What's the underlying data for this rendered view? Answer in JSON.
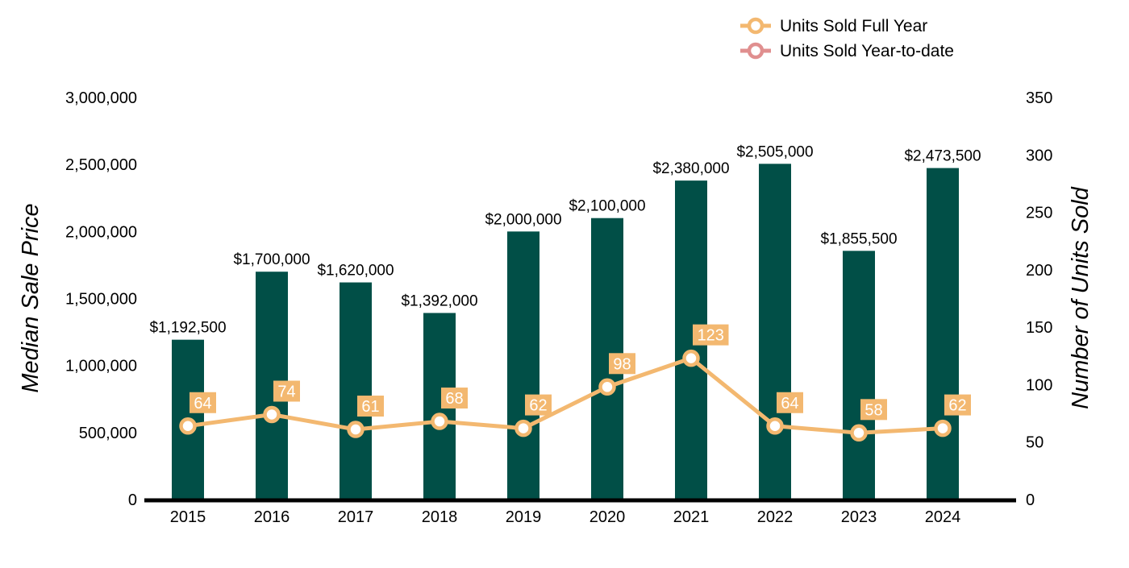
{
  "chart_data": {
    "type": "bar",
    "categories": [
      "2015",
      "2016",
      "2017",
      "2018",
      "2019",
      "2020",
      "2021",
      "2022",
      "2023",
      "2024"
    ],
    "series": [
      {
        "name": "Median Sale Price",
        "type": "bar",
        "axis": "left",
        "values": [
          1192500,
          1700000,
          1620000,
          1392000,
          2000000,
          2100000,
          2380000,
          2505000,
          1855500,
          2473500
        ],
        "labels": [
          "$1,192,500",
          "$1,700,000",
          "$1,620,000",
          "$1,392,000",
          "$2,000,000",
          "$2,100,000",
          "$2,380,000",
          "$2,505,000",
          "$1,855,500",
          "$2,473,500"
        ],
        "color": "#014f47"
      },
      {
        "name": "Units Sold Full Year",
        "type": "line",
        "axis": "right",
        "values": [
          64,
          74,
          61,
          68,
          62,
          98,
          123,
          64,
          58,
          62
        ],
        "labels": [
          "64",
          "74",
          "61",
          "68",
          "62",
          "98",
          "123",
          "64",
          "58",
          "62"
        ],
        "color": "#f3b870"
      }
    ],
    "legend": {
      "position": "top-right",
      "items": [
        {
          "label": "Units Sold Full Year",
          "color": "#f3b870"
        },
        {
          "label": "Units Sold Year-to-date",
          "color": "#e08f8f"
        }
      ]
    },
    "ylabel": "Median Sale Price",
    "y2label": "Number of Units Sold",
    "ylim": [
      0,
      3000000
    ],
    "y2lim": [
      0,
      350
    ],
    "yticks": [
      "0",
      "500,000",
      "1,000,000",
      "1,500,000",
      "2,000,000",
      "2,500,000",
      "3,000,000"
    ],
    "yticks_values": [
      0,
      500000,
      1000000,
      1500000,
      2000000,
      2500000,
      3000000
    ],
    "y2ticks": [
      "0",
      "50",
      "100",
      "150",
      "200",
      "250",
      "300",
      "350"
    ],
    "y2ticks_values": [
      0,
      50,
      100,
      150,
      200,
      250,
      300,
      350
    ],
    "grid": false,
    "colors": {
      "bar": "#014f47",
      "line": "#f3b870",
      "ytd": "#e08f8f",
      "axis": "#000000"
    }
  }
}
